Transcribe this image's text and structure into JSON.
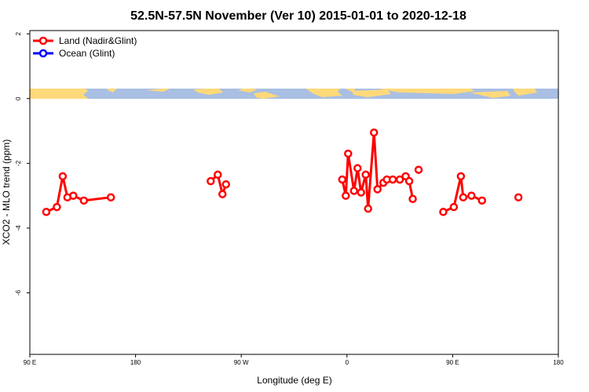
{
  "chart_data": {
    "type": "line",
    "title": "52.5N-57.5N November (Ver 10)   2015-01-01 to 2020-12-18",
    "xlabel": "Longitude (deg E)",
    "ylabel": "XCO2 - MLO trend (ppm)",
    "xlim": [
      90,
      540
    ],
    "ylim": [
      -7.9,
      2.1
    ],
    "x_ticks": [
      {
        "value": 90,
        "label": "90 E"
      },
      {
        "value": 180,
        "label": "180"
      },
      {
        "value": 270,
        "label": "90 W"
      },
      {
        "value": 360,
        "label": "0"
      },
      {
        "value": 450,
        "label": "90 E"
      },
      {
        "value": 540,
        "label": "180"
      }
    ],
    "y_ticks": [
      {
        "value": 2,
        "label": "2"
      },
      {
        "value": 0,
        "label": "0"
      },
      {
        "value": -2,
        "label": "-2"
      },
      {
        "value": -4,
        "label": "-4"
      },
      {
        "value": -6,
        "label": "-6"
      }
    ],
    "grid": false,
    "legend_position": "top-left",
    "land_ocean_band": {
      "y_range": [
        0.05,
        0.3
      ],
      "land_color": "#FFD97A",
      "ocean_color": "#A9BFE3"
    },
    "series": [
      {
        "name": "Land (Nadir&Glint)",
        "color": "#FF0000",
        "segments": [
          [
            [
              104,
              -3.5
            ],
            [
              113,
              -3.35
            ],
            [
              118,
              -2.4
            ],
            [
              122,
              -3.05
            ],
            [
              127,
              -3.0
            ],
            [
              136,
              -3.15
            ],
            [
              159,
              -3.05
            ]
          ],
          [
            [
              244,
              -2.55
            ],
            [
              250,
              -2.35
            ],
            [
              254,
              -2.95
            ],
            [
              257,
              -2.65
            ]
          ],
          [
            [
              356,
              -2.5
            ],
            [
              359,
              -3.0
            ],
            [
              361,
              -1.7
            ],
            [
              366,
              -2.85
            ],
            [
              369,
              -2.15
            ],
            [
              372,
              -2.9
            ],
            [
              376,
              -2.35
            ],
            [
              378,
              -3.4
            ],
            [
              383,
              -1.05
            ],
            [
              386,
              -2.8
            ],
            [
              391,
              -2.6
            ],
            [
              394,
              -2.5
            ],
            [
              399,
              -2.5
            ]
          ],
          [
            [
              405,
              -2.5
            ],
            [
              410,
              -2.4
            ],
            [
              413,
              -2.55
            ],
            [
              416,
              -3.1
            ]
          ],
          [
            [
              421,
              -2.2
            ]
          ],
          [
            [
              442,
              -3.5
            ],
            [
              451,
              -3.35
            ],
            [
              457,
              -2.4
            ],
            [
              459,
              -3.05
            ],
            [
              466,
              -3.0
            ],
            [
              475,
              -3.15
            ]
          ],
          [
            [
              506,
              -3.05
            ]
          ]
        ]
      },
      {
        "name": "Ocean (Glint)",
        "color": "#0000FF",
        "segments": []
      }
    ]
  }
}
